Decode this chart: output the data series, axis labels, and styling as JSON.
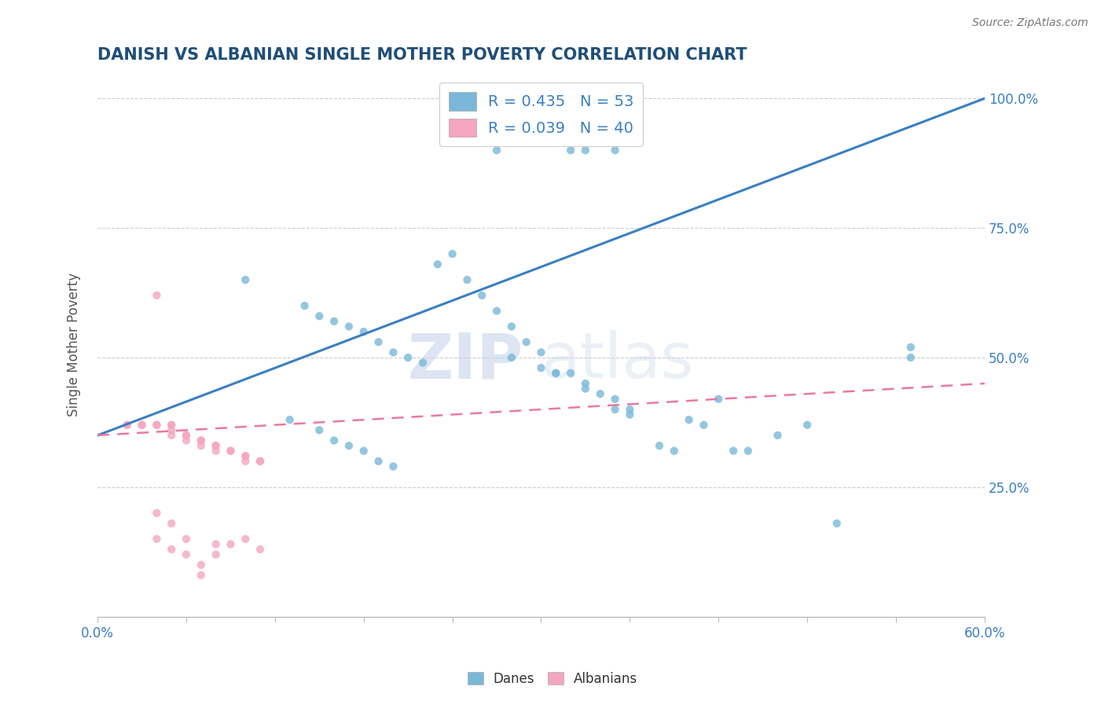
{
  "title": "DANISH VS ALBANIAN SINGLE MOTHER POVERTY CORRELATION CHART",
  "source": "Source: ZipAtlas.com",
  "ylabel": "Single Mother Poverty",
  "ytick_labels": [
    "25.0%",
    "50.0%",
    "75.0%",
    "100.0%"
  ],
  "ytick_values": [
    0.25,
    0.5,
    0.75,
    1.0
  ],
  "legend_danes": "R = 0.435   N = 53",
  "legend_albanians": "R = 0.039   N = 40",
  "legend_label_danes": "Danes",
  "legend_label_albanians": "Albanians",
  "danes_color": "#7ab8d9",
  "albanians_color": "#f4a6bf",
  "trend_danes_color": "#3a7fc1",
  "trend_albanians_color": "#e87aa0",
  "background_color": "#ffffff",
  "watermark_zip": "ZIP",
  "watermark_atlas": "atlas",
  "xmin": 0.0,
  "xmax": 0.6,
  "ymin": 0.0,
  "ymax": 1.05,
  "danes_x": [
    0.27,
    0.32,
    0.33,
    0.35,
    0.1,
    0.14,
    0.15,
    0.16,
    0.17,
    0.18,
    0.19,
    0.2,
    0.21,
    0.22,
    0.23,
    0.24,
    0.25,
    0.26,
    0.27,
    0.28,
    0.29,
    0.3,
    0.31,
    0.32,
    0.33,
    0.34,
    0.35,
    0.36,
    0.38,
    0.39,
    0.4,
    0.41,
    0.43,
    0.44,
    0.46,
    0.48,
    0.5,
    0.55,
    0.13,
    0.15,
    0.16,
    0.17,
    0.18,
    0.19,
    0.2,
    0.28,
    0.3,
    0.31,
    0.33,
    0.35,
    0.36,
    0.42,
    0.55
  ],
  "danes_y": [
    0.9,
    0.9,
    0.9,
    0.9,
    0.65,
    0.6,
    0.58,
    0.57,
    0.56,
    0.55,
    0.53,
    0.51,
    0.5,
    0.49,
    0.68,
    0.7,
    0.65,
    0.62,
    0.59,
    0.56,
    0.53,
    0.51,
    0.47,
    0.47,
    0.45,
    0.43,
    0.4,
    0.39,
    0.33,
    0.32,
    0.38,
    0.37,
    0.32,
    0.32,
    0.35,
    0.37,
    0.18,
    0.52,
    0.38,
    0.36,
    0.34,
    0.33,
    0.32,
    0.3,
    0.29,
    0.5,
    0.48,
    0.47,
    0.44,
    0.42,
    0.4,
    0.42,
    0.5
  ],
  "albanians_x": [
    0.02,
    0.02,
    0.03,
    0.03,
    0.04,
    0.04,
    0.04,
    0.05,
    0.05,
    0.05,
    0.05,
    0.06,
    0.06,
    0.06,
    0.07,
    0.07,
    0.07,
    0.08,
    0.08,
    0.08,
    0.09,
    0.09,
    0.1,
    0.1,
    0.1,
    0.11,
    0.11,
    0.04,
    0.05,
    0.06,
    0.06,
    0.07,
    0.07,
    0.08,
    0.08,
    0.09,
    0.1,
    0.11,
    0.04,
    0.05
  ],
  "albanians_y": [
    0.37,
    0.37,
    0.37,
    0.37,
    0.37,
    0.37,
    0.62,
    0.37,
    0.37,
    0.36,
    0.35,
    0.35,
    0.35,
    0.34,
    0.34,
    0.34,
    0.33,
    0.33,
    0.33,
    0.32,
    0.32,
    0.32,
    0.31,
    0.31,
    0.3,
    0.3,
    0.3,
    0.2,
    0.18,
    0.15,
    0.12,
    0.1,
    0.08,
    0.12,
    0.14,
    0.14,
    0.15,
    0.13,
    0.15,
    0.13
  ],
  "danes_trend_x0": 0.0,
  "danes_trend_x1": 0.6,
  "danes_trend_y0": 0.35,
  "danes_trend_y1": 1.0,
  "albanians_trend_x0": 0.0,
  "albanians_trend_x1": 0.6,
  "albanians_trend_y0": 0.35,
  "albanians_trend_y1": 0.45
}
